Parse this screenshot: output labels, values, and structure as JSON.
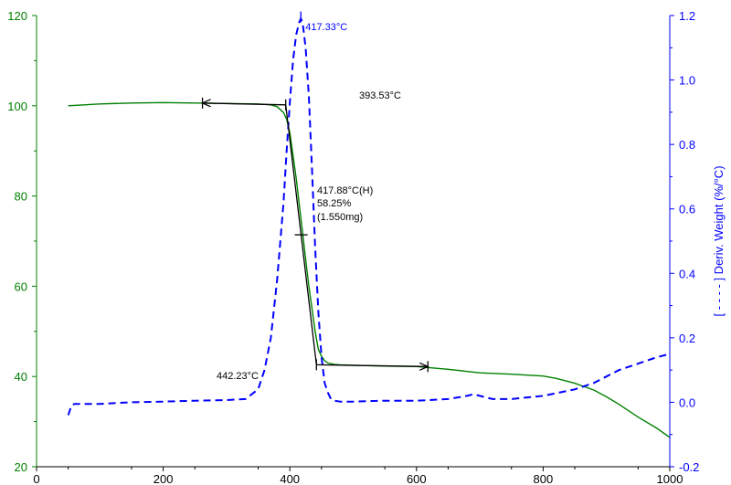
{
  "chart_data": {
    "type": "line",
    "title": "",
    "xlabel": "",
    "ylabel_left": "",
    "ylabel_right": "[ - - - - ] Deriv. Weight (%/°C)",
    "xlim": [
      0,
      1000
    ],
    "ylim_left": [
      20,
      120
    ],
    "ylim_right": [
      -0.2,
      1.2
    ],
    "x_ticks": [
      "0",
      "200",
      "400",
      "600",
      "800",
      "1000"
    ],
    "y_left_ticks": [
      "20",
      "40",
      "60",
      "80",
      "100",
      "120"
    ],
    "y_right_ticks": [
      "-0.2",
      "0.0",
      "0.2",
      "0.4",
      "0.6",
      "0.8",
      "1.0",
      "1.2"
    ],
    "grid": false,
    "colors": {
      "weight": "#008000",
      "deriv": "#0000ff",
      "axis_left": "#008000",
      "axis_right": "#0000ff",
      "axis_bottom": "#000000",
      "annotation": "#000000"
    },
    "series": [
      {
        "axis": "left",
        "style": "solid",
        "x": [
          50,
          100,
          150,
          200,
          250,
          300,
          350,
          370,
          380,
          390,
          395,
          400,
          405,
          410,
          415,
          420,
          425,
          430,
          435,
          440,
          445,
          450,
          455,
          460,
          470,
          480,
          500,
          550,
          600,
          650,
          700,
          750,
          800,
          820,
          850,
          880,
          900,
          920,
          950,
          980,
          1000
        ],
        "y": [
          100,
          100.4,
          100.6,
          100.7,
          100.6,
          100.5,
          100.4,
          100.2,
          99.8,
          98.5,
          97,
          94,
          89,
          84,
          78,
          72,
          66,
          60,
          55,
          50,
          46,
          44.5,
          43.5,
          43,
          42.7,
          42.6,
          42.5,
          42.3,
          42.2,
          41.6,
          40.8,
          40.5,
          40.1,
          39.6,
          38.5,
          37,
          35.5,
          33.8,
          31,
          28.5,
          26.5
        ]
      },
      {
        "axis": "right",
        "style": "dashed",
        "x": [
          50,
          55,
          60,
          100,
          150,
          200,
          250,
          300,
          330,
          350,
          360,
          370,
          380,
          390,
          395,
          400,
          405,
          410,
          415,
          417.33,
          420,
          425,
          430,
          435,
          440,
          445,
          450,
          455,
          460,
          465,
          470,
          480,
          500,
          550,
          600,
          650,
          680,
          690,
          700,
          720,
          750,
          800,
          850,
          880,
          900,
          920,
          950,
          980,
          1000
        ],
        "y": [
          -0.04,
          -0.01,
          -0.005,
          -0.005,
          0.0,
          0.002,
          0.005,
          0.007,
          0.01,
          0.04,
          0.1,
          0.2,
          0.38,
          0.62,
          0.78,
          0.93,
          1.06,
          1.14,
          1.18,
          1.19,
          1.18,
          1.1,
          0.95,
          0.72,
          0.48,
          0.28,
          0.14,
          0.06,
          0.03,
          0.01,
          0.005,
          0.002,
          0.002,
          0.005,
          0.005,
          0.01,
          0.02,
          0.025,
          0.02,
          0.01,
          0.01,
          0.02,
          0.04,
          0.06,
          0.08,
          0.1,
          0.12,
          0.14,
          0.15
        ]
      }
    ],
    "annotations": [
      {
        "text": "417.33°C",
        "color": "#0000ff"
      },
      {
        "text": "393.53°C",
        "color": "#000000"
      },
      {
        "text": "417.88°C(H)",
        "color": "#000000"
      },
      {
        "text": "58.25%",
        "color": "#000000"
      },
      {
        "text": "(1.550mg)",
        "color": "#000000"
      },
      {
        "text": "442.23°C",
        "color": "#000000"
      }
    ]
  }
}
